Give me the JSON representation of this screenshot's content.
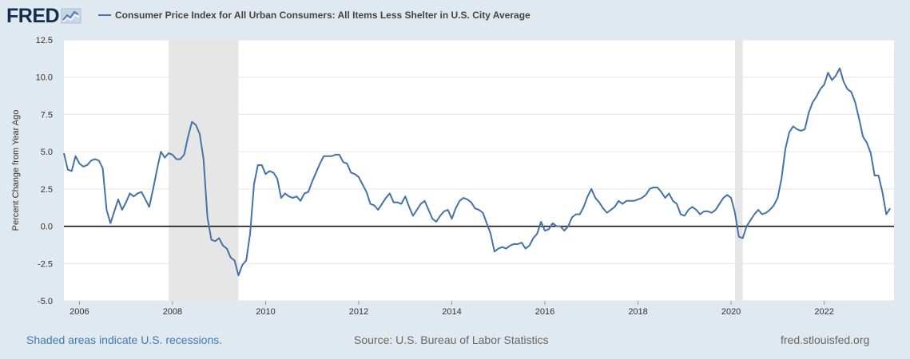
{
  "header": {
    "logo_text": "FRED",
    "series_title": "Consumer Price Index for All Urban Consumers: All Items Less Shelter in U.S. City Average"
  },
  "footer": {
    "recession_note": "Shaded areas indicate U.S. recessions.",
    "source": "Source: U.S. Bureau of Labor Statistics",
    "site": "fred.stlouisfed.org"
  },
  "colors": {
    "series": "#4572a7",
    "recession": "#e6e6e6",
    "zero_line": "#000000",
    "grid": "#e6e6e6",
    "background": "#e1e9f0",
    "plot_background": "#ffffff"
  },
  "chart_data": {
    "type": "line",
    "title": "Consumer Price Index for All Urban Consumers: All Items Less Shelter in U.S. City Average",
    "xlabel": "",
    "ylabel": "Percent Change from Year Ago",
    "xlim": [
      "2005-09",
      "2023-07"
    ],
    "ylim": [
      -5.0,
      12.5
    ],
    "grid": true,
    "legend_position": "top-left",
    "x_ticks": [
      "2006",
      "2008",
      "2010",
      "2012",
      "2014",
      "2016",
      "2018",
      "2020",
      "2022"
    ],
    "y_ticks": [
      "-5.0",
      "-2.5",
      "0.0",
      "2.5",
      "5.0",
      "7.5",
      "10.0",
      "12.5"
    ],
    "recessions": [
      {
        "start": "2007-12",
        "end": "2009-06"
      },
      {
        "start": "2020-02",
        "end": "2020-04"
      }
    ],
    "reference_line": 0,
    "series": [
      {
        "name": "Consumer Price Index for All Urban Consumers: All Items Less Shelter in U.S. City Average",
        "start": "2005-09",
        "frequency": "monthly",
        "values": [
          4.9,
          3.8,
          3.7,
          4.7,
          4.2,
          4.0,
          4.1,
          4.4,
          4.5,
          4.4,
          3.9,
          1.1,
          0.2,
          1.0,
          1.8,
          1.1,
          1.6,
          2.2,
          2.0,
          2.2,
          2.3,
          1.8,
          1.3,
          2.5,
          3.8,
          5.0,
          4.6,
          4.9,
          4.8,
          4.5,
          4.5,
          4.8,
          6.0,
          7.0,
          6.8,
          6.2,
          4.5,
          0.6,
          -0.9,
          -1.0,
          -0.8,
          -1.3,
          -1.5,
          -2.1,
          -2.3,
          -3.3,
          -2.6,
          -2.3,
          -0.5,
          2.8,
          4.1,
          4.1,
          3.5,
          3.7,
          3.6,
          3.2,
          1.9,
          2.2,
          2.0,
          1.9,
          2.0,
          1.7,
          2.2,
          2.3,
          3.0,
          3.6,
          4.2,
          4.7,
          4.7,
          4.7,
          4.8,
          4.8,
          4.3,
          4.2,
          3.6,
          3.5,
          3.3,
          2.8,
          2.3,
          1.5,
          1.4,
          1.1,
          1.5,
          1.9,
          2.2,
          1.6,
          1.6,
          1.5,
          2.0,
          1.3,
          0.7,
          1.1,
          1.5,
          1.7,
          1.1,
          0.5,
          0.3,
          0.7,
          1.0,
          1.1,
          0.5,
          1.2,
          1.7,
          1.9,
          1.8,
          1.6,
          1.2,
          1.1,
          0.9,
          0.2,
          -0.5,
          -1.7,
          -1.5,
          -1.4,
          -1.5,
          -1.3,
          -1.2,
          -1.2,
          -1.1,
          -1.5,
          -1.3,
          -0.8,
          -0.5,
          0.3,
          -0.3,
          -0.2,
          0.2,
          0.0,
          0.0,
          -0.3,
          0.0,
          0.6,
          0.8,
          0.8,
          1.3,
          2.0,
          2.5,
          1.9,
          1.6,
          1.2,
          0.9,
          1.1,
          1.3,
          1.7,
          1.5,
          1.7,
          1.7,
          1.7,
          1.8,
          1.9,
          2.1,
          2.5,
          2.6,
          2.6,
          2.3,
          1.9,
          2.2,
          1.7,
          1.5,
          0.8,
          0.7,
          1.1,
          1.3,
          1.1,
          0.8,
          1.0,
          1.0,
          0.9,
          1.1,
          1.5,
          1.9,
          2.1,
          1.9,
          0.9,
          -0.7,
          -0.8,
          0.0,
          0.4,
          0.8,
          1.1,
          0.8,
          0.9,
          1.1,
          1.4,
          1.9,
          3.2,
          5.2,
          6.3,
          6.7,
          6.5,
          6.4,
          6.5,
          7.6,
          8.3,
          8.7,
          9.2,
          9.5,
          10.3,
          9.8,
          10.1,
          10.6,
          9.7,
          9.2,
          9.0,
          8.3,
          7.2,
          6.0,
          5.6,
          4.9,
          3.4,
          3.4,
          2.3,
          0.8,
          1.2
        ]
      }
    ]
  }
}
